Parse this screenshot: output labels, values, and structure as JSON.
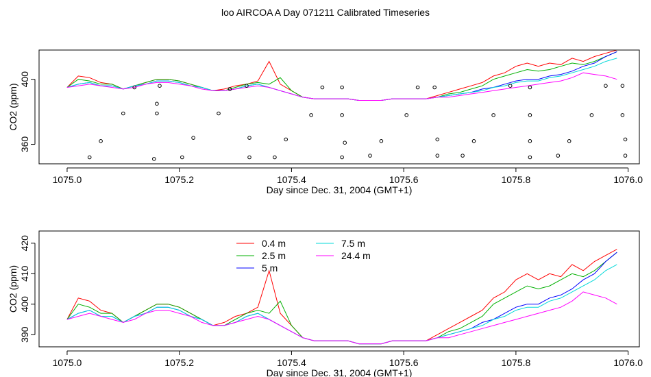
{
  "title": "loo AIRCOA A  Day 071211  Calibrated Timeseries",
  "chart_data": [
    {
      "type": "line",
      "xlabel": "Day since Dec. 31, 2004 (GMT+1)",
      "ylabel": "CO2 (ppm)",
      "xlim": [
        1074.95,
        1076.02
      ],
      "ylim": [
        348,
        418
      ],
      "xticks": [
        "1075.0",
        "1075.2",
        "1075.4",
        "1075.6",
        "1075.8",
        "1076.0"
      ],
      "yticks": [
        "360",
        "400"
      ],
      "x": [
        1075.0,
        1075.02,
        1075.04,
        1075.06,
        1075.08,
        1075.1,
        1075.12,
        1075.14,
        1075.16,
        1075.18,
        1075.2,
        1075.22,
        1075.24,
        1075.26,
        1075.28,
        1075.3,
        1075.32,
        1075.34,
        1075.36,
        1075.38,
        1075.4,
        1075.42,
        1075.44,
        1075.46,
        1075.48,
        1075.5,
        1075.52,
        1075.54,
        1075.56,
        1075.58,
        1075.6,
        1075.62,
        1075.64,
        1075.66,
        1075.68,
        1075.7,
        1075.72,
        1075.74,
        1075.76,
        1075.78,
        1075.8,
        1075.82,
        1075.84,
        1075.86,
        1075.88,
        1075.9,
        1075.92,
        1075.94,
        1075.96,
        1075.98
      ],
      "series": [
        {
          "name": "0.4 m",
          "color": "#ff0000",
          "values": [
            395,
            402,
            401,
            398,
            397,
            394,
            396,
            398,
            400,
            400,
            399,
            397,
            395,
            393,
            394,
            396,
            397,
            399,
            411,
            397,
            393,
            389,
            388,
            388,
            388,
            388,
            387,
            387,
            387,
            388,
            388,
            388,
            388,
            390,
            392,
            394,
            396,
            398,
            402,
            404,
            408,
            410,
            408,
            410,
            409,
            413,
            411,
            414,
            416,
            418
          ]
        },
        {
          "name": "2.5 m",
          "color": "#00b000",
          "values": [
            395,
            400,
            399,
            397,
            397,
            394,
            396,
            398,
            400,
            400,
            399,
            397,
            395,
            393,
            393,
            395,
            397,
            398,
            397,
            401,
            393,
            389,
            388,
            388,
            388,
            388,
            387,
            387,
            387,
            388,
            388,
            388,
            388,
            389,
            391,
            392,
            394,
            396,
            400,
            402,
            404,
            406,
            405,
            406,
            408,
            410,
            409,
            411,
            414,
            417
          ]
        },
        {
          "name": "5 m",
          "color": "#0000ff",
          "values": [
            395,
            397,
            398,
            396,
            396,
            394,
            396,
            397,
            399,
            399,
            398,
            396,
            395,
            393,
            393,
            394,
            396,
            397,
            395,
            393,
            391,
            389,
            388,
            388,
            388,
            388,
            387,
            387,
            387,
            388,
            388,
            388,
            388,
            389,
            390,
            391,
            392,
            394,
            395,
            397,
            399,
            400,
            400,
            402,
            403,
            405,
            408,
            410,
            414,
            417
          ]
        },
        {
          "name": "7.5 m",
          "color": "#00d8d8",
          "values": [
            395,
            397,
            398,
            396,
            396,
            394,
            396,
            397,
            399,
            399,
            398,
            396,
            395,
            393,
            393,
            394,
            396,
            397,
            395,
            393,
            391,
            389,
            388,
            388,
            388,
            388,
            387,
            387,
            387,
            388,
            388,
            388,
            388,
            389,
            390,
            391,
            392,
            393,
            395,
            396,
            398,
            399,
            399,
            401,
            402,
            404,
            406,
            408,
            411,
            413
          ]
        },
        {
          "name": "24.4 m",
          "color": "#ff00ff",
          "values": [
            395,
            396,
            397,
            396,
            395,
            394,
            395,
            397,
            398,
            398,
            397,
            396,
            394,
            393,
            393,
            394,
            395,
            396,
            395,
            393,
            391,
            389,
            388,
            388,
            388,
            388,
            387,
            387,
            387,
            388,
            388,
            388,
            388,
            389,
            389,
            390,
            391,
            392,
            393,
            394,
            395,
            396,
            397,
            398,
            399,
            401,
            404,
            403,
            402,
            400
          ]
        }
      ],
      "scatter_series": [
        {
          "name": "",
          "color": "#000000",
          "x": [
            1075.04,
            1075.06,
            1075.1,
            1075.12,
            1075.155,
            1075.16,
            1075.16,
            1075.165,
            1075.205,
            1075.225,
            1075.27,
            1075.29,
            1075.32,
            1075.325,
            1075.325,
            1075.37,
            1075.39,
            1075.435,
            1075.455,
            1075.49,
            1075.49,
            1075.49,
            1075.495,
            1075.54,
            1075.56,
            1075.605,
            1075.625,
            1075.655,
            1075.66,
            1075.66,
            1075.705,
            1075.725,
            1075.76,
            1075.79,
            1075.825,
            1075.825,
            1075.825,
            1075.825,
            1075.875,
            1075.895,
            1075.935,
            1075.96,
            1075.99,
            1075.99,
            1075.995,
            1075.995
          ],
          "values": [
            352,
            362,
            379,
            395,
            351,
            379,
            385,
            396,
            352,
            364,
            379,
            394,
            396,
            364,
            352,
            352,
            363,
            378,
            395,
            395,
            378,
            352,
            361,
            353,
            362,
            378,
            395,
            395,
            363,
            353,
            353,
            362,
            378,
            396,
            395,
            378,
            362,
            352,
            353,
            362,
            378,
            396,
            396,
            378,
            363,
            353
          ]
        }
      ]
    },
    {
      "type": "line",
      "xlabel": "Day since Dec. 31, 2004 (GMT+1)",
      "ylabel": "CO2 (ppm)",
      "xlim": [
        1074.95,
        1076.02
      ],
      "ylim": [
        386,
        424
      ],
      "xticks": [
        "1075.0",
        "1075.2",
        "1075.4",
        "1075.6",
        "1075.8",
        "1076.0"
      ],
      "yticks": [
        "390",
        "400",
        "410",
        "420"
      ],
      "legend": "top-center",
      "x": [
        1075.0,
        1075.02,
        1075.04,
        1075.06,
        1075.08,
        1075.1,
        1075.12,
        1075.14,
        1075.16,
        1075.18,
        1075.2,
        1075.22,
        1075.24,
        1075.26,
        1075.28,
        1075.3,
        1075.32,
        1075.34,
        1075.36,
        1075.38,
        1075.4,
        1075.42,
        1075.44,
        1075.46,
        1075.48,
        1075.5,
        1075.52,
        1075.54,
        1075.56,
        1075.58,
        1075.6,
        1075.62,
        1075.64,
        1075.66,
        1075.68,
        1075.7,
        1075.72,
        1075.74,
        1075.76,
        1075.78,
        1075.8,
        1075.82,
        1075.84,
        1075.86,
        1075.88,
        1075.9,
        1075.92,
        1075.94,
        1075.96,
        1075.98
      ],
      "series": [
        {
          "name": "0.4 m",
          "color": "#ff0000",
          "values": [
            395,
            402,
            401,
            398,
            397,
            394,
            396,
            398,
            400,
            400,
            399,
            397,
            395,
            393,
            394,
            396,
            397,
            399,
            411,
            397,
            393,
            389,
            388,
            388,
            388,
            388,
            387,
            387,
            387,
            388,
            388,
            388,
            388,
            390,
            392,
            394,
            396,
            398,
            402,
            404,
            408,
            410,
            408,
            410,
            409,
            413,
            411,
            414,
            416,
            418
          ]
        },
        {
          "name": "2.5 m",
          "color": "#00b000",
          "values": [
            395,
            400,
            399,
            397,
            397,
            394,
            396,
            398,
            400,
            400,
            399,
            397,
            395,
            393,
            393,
            395,
            397,
            398,
            397,
            401,
            393,
            389,
            388,
            388,
            388,
            388,
            387,
            387,
            387,
            388,
            388,
            388,
            388,
            389,
            391,
            392,
            394,
            396,
            400,
            402,
            404,
            406,
            405,
            406,
            408,
            410,
            409,
            411,
            414,
            417
          ]
        },
        {
          "name": "5 m",
          "color": "#0000ff",
          "values": [
            395,
            397,
            398,
            396,
            396,
            394,
            396,
            397,
            399,
            399,
            398,
            396,
            395,
            393,
            393,
            394,
            396,
            397,
            395,
            393,
            391,
            389,
            388,
            388,
            388,
            388,
            387,
            387,
            387,
            388,
            388,
            388,
            388,
            389,
            390,
            391,
            392,
            394,
            395,
            397,
            399,
            400,
            400,
            402,
            403,
            405,
            408,
            410,
            414,
            417
          ]
        },
        {
          "name": "7.5 m",
          "color": "#00d8d8",
          "values": [
            395,
            397,
            398,
            396,
            396,
            394,
            396,
            397,
            399,
            399,
            398,
            396,
            395,
            393,
            393,
            394,
            396,
            397,
            395,
            393,
            391,
            389,
            388,
            388,
            388,
            388,
            387,
            387,
            387,
            388,
            388,
            388,
            388,
            389,
            390,
            391,
            392,
            393,
            395,
            396,
            398,
            399,
            399,
            401,
            402,
            404,
            406,
            408,
            411,
            413
          ]
        },
        {
          "name": "24.4 m",
          "color": "#ff00ff",
          "values": [
            395,
            396,
            397,
            396,
            395,
            394,
            395,
            397,
            398,
            398,
            397,
            396,
            394,
            393,
            393,
            394,
            395,
            396,
            395,
            393,
            391,
            389,
            388,
            388,
            388,
            388,
            387,
            387,
            387,
            388,
            388,
            388,
            388,
            389,
            389,
            390,
            391,
            392,
            393,
            394,
            395,
            396,
            397,
            398,
            399,
            401,
            404,
            403,
            402,
            400
          ]
        }
      ]
    }
  ]
}
